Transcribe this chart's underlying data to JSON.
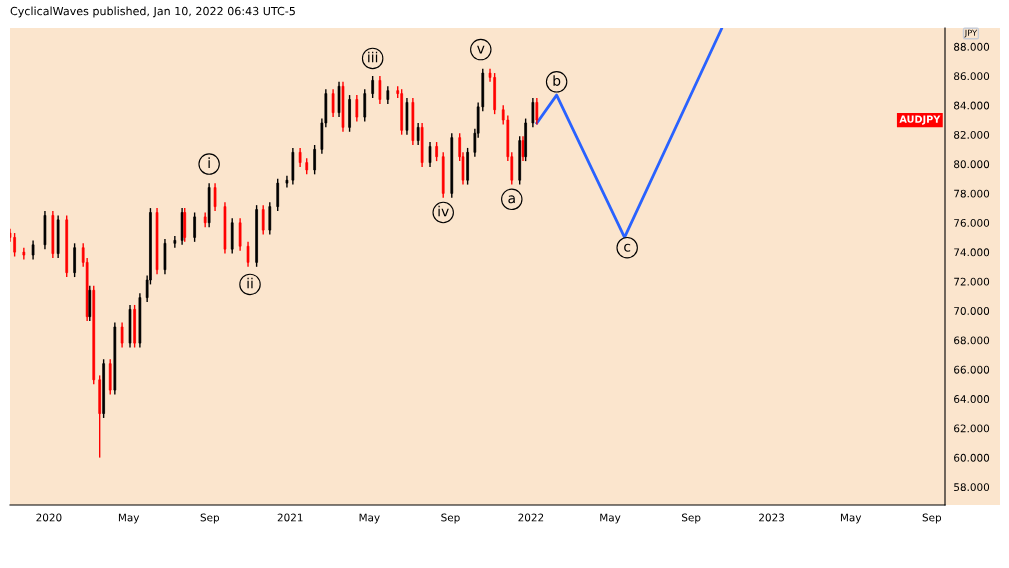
{
  "chart_data": {
    "type": "candlestick",
    "title": "CyclicalWaves published, Jan 10, 2022 06:43 UTC-5",
    "x": [
      "2019-11-03",
      "2019-11-10",
      "2019-11-24",
      "2019-12-08",
      "2019-12-26",
      "2020-01-07",
      "2020-01-15",
      "2020-01-28",
      "2020-02-09",
      "2020-02-22",
      "2020-02-28",
      "2020-03-03",
      "2020-03-09",
      "2020-03-18",
      "2020-03-24",
      "2020-04-03",
      "2020-04-10",
      "2020-04-21",
      "2020-05-03",
      "2020-05-10",
      "2020-05-18",
      "2020-05-29",
      "2020-06-03",
      "2020-06-13",
      "2020-06-25",
      "2020-07-10",
      "2020-07-21",
      "2020-07-25",
      "2020-08-09",
      "2020-08-25",
      "2020-08-31",
      "2020-09-09",
      "2020-09-24",
      "2020-10-05",
      "2020-10-17",
      "2020-10-29",
      "2020-11-11",
      "2020-11-21",
      "2020-12-01",
      "2020-12-13",
      "2020-12-27",
      "2021-01-05",
      "2021-01-16",
      "2021-01-26",
      "2021-02-07",
      "2021-02-18",
      "2021-02-24",
      "2021-03-07",
      "2021-03-16",
      "2021-03-22",
      "2021-04-01",
      "2021-04-12",
      "2021-04-24",
      "2021-05-06",
      "2021-05-17",
      "2021-05-29",
      "2021-06-13",
      "2021-06-19",
      "2021-06-27",
      "2021-07-06",
      "2021-07-14",
      "2021-07-20",
      "2021-08-01",
      "2021-08-11",
      "2021-08-21",
      "2021-09-03",
      "2021-09-15",
      "2021-09-20",
      "2021-09-27",
      "2021-10-08",
      "2021-10-13",
      "2021-10-20",
      "2021-10-31",
      "2021-11-07",
      "2021-11-20",
      "2021-11-27",
      "2021-12-03",
      "2021-12-15",
      "2021-12-20",
      "2021-12-24",
      "2022-01-04",
      "2022-01-10"
    ],
    "ohlc": [
      [
        75.3,
        75.6,
        74.7,
        75.0
      ],
      [
        75.0,
        75.3,
        73.7,
        74.0
      ],
      [
        74.0,
        74.3,
        73.5,
        73.8
      ],
      [
        73.8,
        74.8,
        73.5,
        74.5
      ],
      [
        74.5,
        76.8,
        74.2,
        76.5
      ],
      [
        76.5,
        76.8,
        73.6,
        73.9
      ],
      [
        73.9,
        76.5,
        73.6,
        76.2
      ],
      [
        76.2,
        76.5,
        72.3,
        72.6
      ],
      [
        72.6,
        74.6,
        72.3,
        74.3
      ],
      [
        74.3,
        74.6,
        73.0,
        73.3
      ],
      [
        73.3,
        73.6,
        69.3,
        69.6
      ],
      [
        69.6,
        71.7,
        69.3,
        71.4
      ],
      [
        71.4,
        71.7,
        65.0,
        65.3
      ],
      [
        65.3,
        65.6,
        60.0,
        63.0
      ],
      [
        63.0,
        66.7,
        62.7,
        66.4
      ],
      [
        66.4,
        66.7,
        64.3,
        64.6
      ],
      [
        64.6,
        69.2,
        64.3,
        68.9
      ],
      [
        68.9,
        69.2,
        67.5,
        67.8
      ],
      [
        67.8,
        70.4,
        67.5,
        70.1
      ],
      [
        70.1,
        70.4,
        67.5,
        67.8
      ],
      [
        67.8,
        71.2,
        67.5,
        70.9
      ],
      [
        70.9,
        72.4,
        70.6,
        72.1
      ],
      [
        72.1,
        77.0,
        71.8,
        76.7
      ],
      [
        76.7,
        77.0,
        72.5,
        72.8
      ],
      [
        72.8,
        74.9,
        72.5,
        74.6
      ],
      [
        74.6,
        75.1,
        74.3,
        74.8
      ],
      [
        74.8,
        77.0,
        74.5,
        76.7
      ],
      [
        76.7,
        77.0,
        74.7,
        75.0
      ],
      [
        75.0,
        76.7,
        74.7,
        76.4
      ],
      [
        76.4,
        76.7,
        75.7,
        76.0
      ],
      [
        76.0,
        78.7,
        75.7,
        78.4
      ],
      [
        78.4,
        78.7,
        76.8,
        77.1
      ],
      [
        77.1,
        77.4,
        73.9,
        74.2
      ],
      [
        74.2,
        76.3,
        73.9,
        76.0
      ],
      [
        76.0,
        76.3,
        74.1,
        74.4
      ],
      [
        74.4,
        74.7,
        73.0,
        73.3
      ],
      [
        73.3,
        77.2,
        73.0,
        76.9
      ],
      [
        76.9,
        77.2,
        75.2,
        75.5
      ],
      [
        75.5,
        77.4,
        75.2,
        77.1
      ],
      [
        77.1,
        79.0,
        76.8,
        78.7
      ],
      [
        78.7,
        79.2,
        78.4,
        78.9
      ],
      [
        78.9,
        81.1,
        78.6,
        80.8
      ],
      [
        80.8,
        81.1,
        79.8,
        80.1
      ],
      [
        80.1,
        80.4,
        79.3,
        79.6
      ],
      [
        79.6,
        81.3,
        79.3,
        81.0
      ],
      [
        81.0,
        83.1,
        80.7,
        82.8
      ],
      [
        82.8,
        85.1,
        82.5,
        84.8
      ],
      [
        84.8,
        85.1,
        83.2,
        83.5
      ],
      [
        83.5,
        85.6,
        83.2,
        85.3
      ],
      [
        85.3,
        85.6,
        82.2,
        82.5
      ],
      [
        82.5,
        84.7,
        82.2,
        84.4
      ],
      [
        84.4,
        84.7,
        82.9,
        83.2
      ],
      [
        83.2,
        85.1,
        82.9,
        84.8
      ],
      [
        84.8,
        86.0,
        84.5,
        85.7
      ],
      [
        85.7,
        86.0,
        84.1,
        84.4
      ],
      [
        84.4,
        85.3,
        84.1,
        85.0
      ],
      [
        85.0,
        85.3,
        84.5,
        84.8
      ],
      [
        84.8,
        85.1,
        82.0,
        82.3
      ],
      [
        82.3,
        84.5,
        82.0,
        84.2
      ],
      [
        84.2,
        84.5,
        81.3,
        81.6
      ],
      [
        81.6,
        82.8,
        81.3,
        82.5
      ],
      [
        82.5,
        82.8,
        79.8,
        80.1
      ],
      [
        80.1,
        81.5,
        79.8,
        81.2
      ],
      [
        81.2,
        81.5,
        80.2,
        80.5
      ],
      [
        80.5,
        80.8,
        77.7,
        78.0
      ],
      [
        78.0,
        82.1,
        77.7,
        81.8
      ],
      [
        81.8,
        82.1,
        80.2,
        80.5
      ],
      [
        80.5,
        80.8,
        78.6,
        78.9
      ],
      [
        78.9,
        81.1,
        78.6,
        80.8
      ],
      [
        80.8,
        82.4,
        80.5,
        82.1
      ],
      [
        82.1,
        84.2,
        81.8,
        83.9
      ],
      [
        83.9,
        86.5,
        83.6,
        86.2
      ],
      [
        86.2,
        86.5,
        85.6,
        85.9
      ],
      [
        85.9,
        86.2,
        83.4,
        83.7
      ],
      [
        83.7,
        84.0,
        82.7,
        83.0
      ],
      [
        83.0,
        83.3,
        80.2,
        80.5
      ],
      [
        80.5,
        80.8,
        78.6,
        78.9
      ],
      [
        78.9,
        81.9,
        78.6,
        81.6
      ],
      [
        81.6,
        81.9,
        80.2,
        80.5
      ],
      [
        80.5,
        83.1,
        80.2,
        82.8
      ],
      [
        82.8,
        84.5,
        82.5,
        84.2
      ],
      [
        84.2,
        84.5,
        82.7,
        83.0
      ]
    ],
    "colors": [
      "#ff0000",
      "#ff0000",
      "#ff0000",
      "#000000",
      "#000000",
      "#ff0000",
      "#000000",
      "#ff0000",
      "#000000",
      "#ff0000",
      "#ff0000",
      "#000000",
      "#ff0000",
      "#ff0000",
      "#000000",
      "#ff0000",
      "#000000",
      "#ff0000",
      "#000000",
      "#ff0000",
      "#000000",
      "#000000",
      "#000000",
      "#ff0000",
      "#000000",
      "#000000",
      "#000000",
      "#ff0000",
      "#000000",
      "#ff0000",
      "#000000",
      "#ff0000",
      "#ff0000",
      "#000000",
      "#ff0000",
      "#ff0000",
      "#000000",
      "#ff0000",
      "#000000",
      "#000000",
      "#000000",
      "#000000",
      "#ff0000",
      "#ff0000",
      "#000000",
      "#000000",
      "#000000",
      "#ff0000",
      "#000000",
      "#ff0000",
      "#000000",
      "#ff0000",
      "#000000",
      "#000000",
      "#ff0000",
      "#000000",
      "#ff0000",
      "#ff0000",
      "#000000",
      "#ff0000",
      "#000000",
      "#ff0000",
      "#000000",
      "#ff0000",
      "#ff0000",
      "#000000",
      "#ff0000",
      "#ff0000",
      "#000000",
      "#000000",
      "#000000",
      "#000000",
      "#ff0000",
      "#ff0000",
      "#ff0000",
      "#ff0000",
      "#ff0000",
      "#000000",
      "#ff0000",
      "#000000",
      "#000000",
      "#ff0000"
    ],
    "series": [
      {
        "type": "line",
        "color": "#2962ff",
        "x": [
          "2022-01-10",
          "2022-02-09",
          "2022-05-23",
          "2022-10-17"
        ],
        "values": [
          82.8,
          84.7,
          75.0,
          89.2
        ]
      }
    ],
    "annotations": [
      {
        "text": "i",
        "x": "2020-08-31",
        "y": 80.0
      },
      {
        "text": "ii",
        "x": "2020-11-01",
        "y": 71.8
      },
      {
        "text": "iii",
        "x": "2021-05-06",
        "y": 87.2
      },
      {
        "text": "iv",
        "x": "2021-08-21",
        "y": 76.7
      },
      {
        "text": "v",
        "x": "2021-10-17",
        "y": 87.8
      },
      {
        "text": "a",
        "x": "2021-12-03",
        "y": 77.6
      },
      {
        "text": "b",
        "x": "2022-02-09",
        "y": 85.6
      },
      {
        "text": "c",
        "x": "2022-05-27",
        "y": 74.3
      },
      "AUDJPY",
      "JPY"
    ],
    "xlim": [
      "2019-11-03",
      "2023-09-21"
    ],
    "xticks": [
      {
        "value": "2020-01-01",
        "label": "2020"
      },
      {
        "value": "2020-05-01",
        "label": "May"
      },
      {
        "value": "2020-09-01",
        "label": "Sep"
      },
      {
        "value": "2021-01-01",
        "label": "2021"
      },
      {
        "value": "2021-05-01",
        "label": "May"
      },
      {
        "value": "2021-09-01",
        "label": "Sep"
      },
      {
        "value": "2022-01-01",
        "label": "2022"
      },
      {
        "value": "2022-05-01",
        "label": "May"
      },
      {
        "value": "2022-09-01",
        "label": "Sep"
      },
      {
        "value": "2023-01-01",
        "label": "2023"
      },
      {
        "value": "2023-05-01",
        "label": "May"
      },
      {
        "value": "2023-09-01",
        "label": "Sep"
      }
    ],
    "ylim": [
      56.77,
      89.27
    ],
    "yticks": [
      {
        "value": 58,
        "label": "58.000"
      },
      {
        "value": 60,
        "label": "60.000"
      },
      {
        "value": 62,
        "label": "62.000"
      },
      {
        "value": 64,
        "label": "64.000"
      },
      {
        "value": 66,
        "label": "66.000"
      },
      {
        "value": 68,
        "label": "68.000"
      },
      {
        "value": 70,
        "label": "70.000"
      },
      {
        "value": 72,
        "label": "72.000"
      },
      {
        "value": 74,
        "label": "74.000"
      },
      {
        "value": 76,
        "label": "76.000"
      },
      {
        "value": 78,
        "label": "78.000"
      },
      {
        "value": 80,
        "label": "80.000"
      },
      {
        "value": 82,
        "label": "82.000"
      },
      {
        "value": 84,
        "label": "84.000"
      },
      {
        "value": 86,
        "label": "86.000"
      },
      {
        "value": 88,
        "label": "88.000"
      }
    ]
  }
}
